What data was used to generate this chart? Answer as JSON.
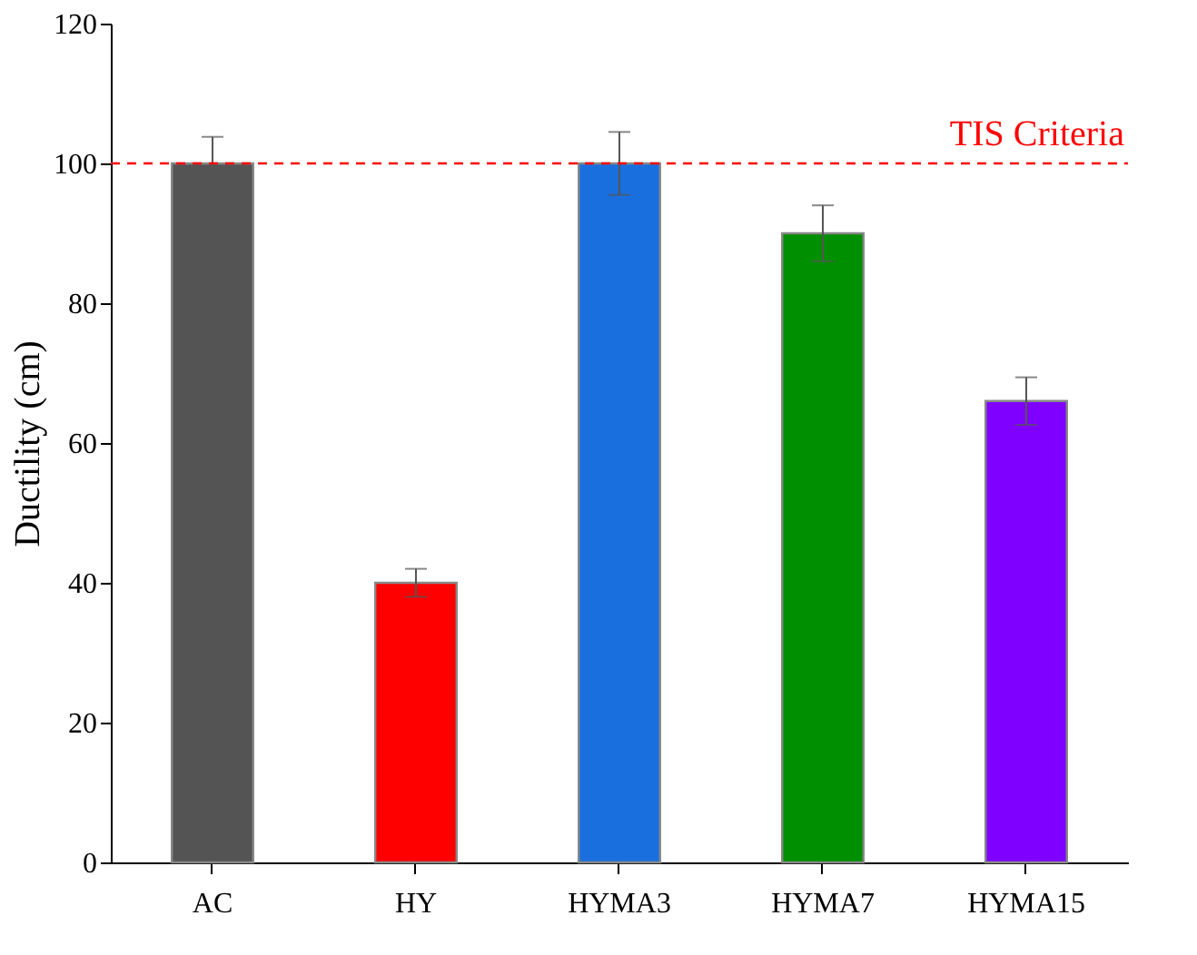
{
  "chart_data": {
    "type": "bar",
    "ylabel": "Ductility (cm)",
    "categories": [
      "AC",
      "HY",
      "HYMA3",
      "HYMA7",
      "HYMA15"
    ],
    "values": [
      100,
      40,
      100,
      90,
      66
    ],
    "errors": [
      3.8,
      2,
      4.5,
      4,
      3.4
    ],
    "colors": [
      "#545454",
      "#ff0000",
      "#1a6fdf",
      "#008f00",
      "#7f00ff"
    ],
    "ylim": [
      0,
      120
    ],
    "yticks": [
      0,
      20,
      40,
      60,
      80,
      100,
      120
    ],
    "ref_lines": [
      {
        "axis": "y",
        "value": 100,
        "label": "TIS Criteria",
        "color": "#ff0000",
        "line_style": "dashed"
      }
    ],
    "grid": false
  }
}
